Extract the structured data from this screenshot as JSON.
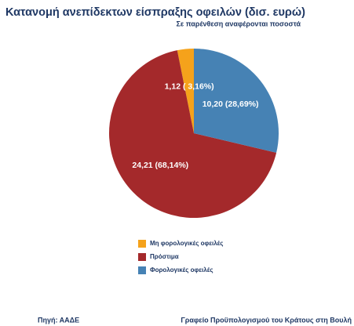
{
  "chart_data": {
    "type": "pie",
    "title": "Κατανομή ανεπίδεκτων είσπραξης οφειλών (δισ. ευρώ)",
    "subtitle": "Σε παρένθεση αναφέρονται ποσοστά",
    "categories": [
      "Μη φορολογικές οφειλές",
      "Πρόστιμα",
      "Φορολογικές οφειλές"
    ],
    "values": [
      1.12,
      24.21,
      10.2
    ],
    "value_labels": [
      "1,12 ( 3,16%)",
      "24,21 (68,14%)",
      "10,20 (28,69%)"
    ],
    "colors": [
      "#f5a21b",
      "#a4292b",
      "#4682b4"
    ],
    "legend": "bottom",
    "source": "Πηγή: ΑΑΔΕ",
    "credit": "Γραφείο Προϋπολογισμού του Κράτους στη Βουλή"
  }
}
